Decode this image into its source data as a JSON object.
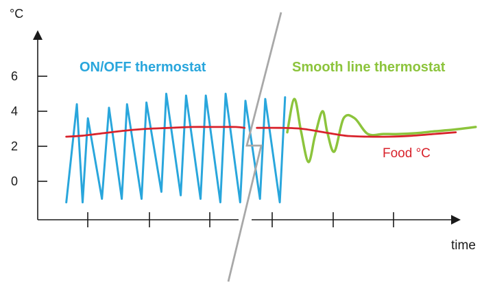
{
  "chart_data": {
    "type": "line",
    "ylabel": "°C",
    "xlabel": "time",
    "ylim": [
      -2,
      8
    ],
    "xlim": [
      0,
      100
    ],
    "y_ticks": [
      0,
      2,
      4,
      6
    ],
    "x_ticks": [
      12,
      26,
      40,
      55,
      69,
      83
    ],
    "grid": false,
    "colors": {
      "onoff": "#29a6dc",
      "smooth": "#8cc43c",
      "food": "#d8222b",
      "axis": "#1a1a1a",
      "divider": "#a8a8a8"
    },
    "panels": {
      "left_title": "ON/OFF thermostat",
      "right_title": "Smooth line thermostat"
    },
    "food_label": "Food  °C",
    "series": [
      {
        "name": "ON/OFF thermostat",
        "x": [
          6.5,
          8.9,
          10.2,
          11.4,
          14.6,
          16.2,
          19.1,
          20.3,
          23.6,
          24.7,
          28.1,
          29.2,
          32.5,
          33.7,
          37.0,
          38.2,
          41.5,
          42.7,
          46.0,
          47.2,
          50.5,
          51.7,
          55.0,
          56.2
        ],
        "values": [
          -1.2,
          4.4,
          -1.2,
          3.6,
          -1.0,
          4.2,
          -1.0,
          4.4,
          -1.0,
          4.5,
          -0.6,
          5.0,
          -0.8,
          4.9,
          -1.0,
          4.9,
          -1.2,
          5.0,
          -1.2,
          4.6,
          -1.0,
          4.7,
          -1.2,
          4.8
        ]
      },
      {
        "name": "Smooth line thermostat",
        "x": [
          56.7,
          58.3,
          59.8,
          61.5,
          63.0,
          64.7,
          65.8,
          67.4,
          69.5,
          72.0,
          75.0,
          78.5,
          82.0,
          86.0,
          90.0,
          94.5,
          99.5
        ],
        "values": [
          2.8,
          4.7,
          2.9,
          1.1,
          2.6,
          4.0,
          2.8,
          1.7,
          3.6,
          3.6,
          2.7,
          2.7,
          2.7,
          2.75,
          2.85,
          2.95,
          3.1
        ]
      },
      {
        "name": "Food  °C",
        "x": [
          6.5,
          10,
          15,
          20,
          25,
          30,
          35,
          40,
          45,
          50,
          55,
          60,
          65,
          70,
          75,
          80,
          85,
          90,
          95
        ],
        "values": [
          2.55,
          2.6,
          2.75,
          2.9,
          3.0,
          3.05,
          3.1,
          3.1,
          3.1,
          3.1,
          3.05,
          3.0,
          2.8,
          2.6,
          2.55,
          2.55,
          2.6,
          2.7,
          2.8
        ]
      }
    ]
  }
}
